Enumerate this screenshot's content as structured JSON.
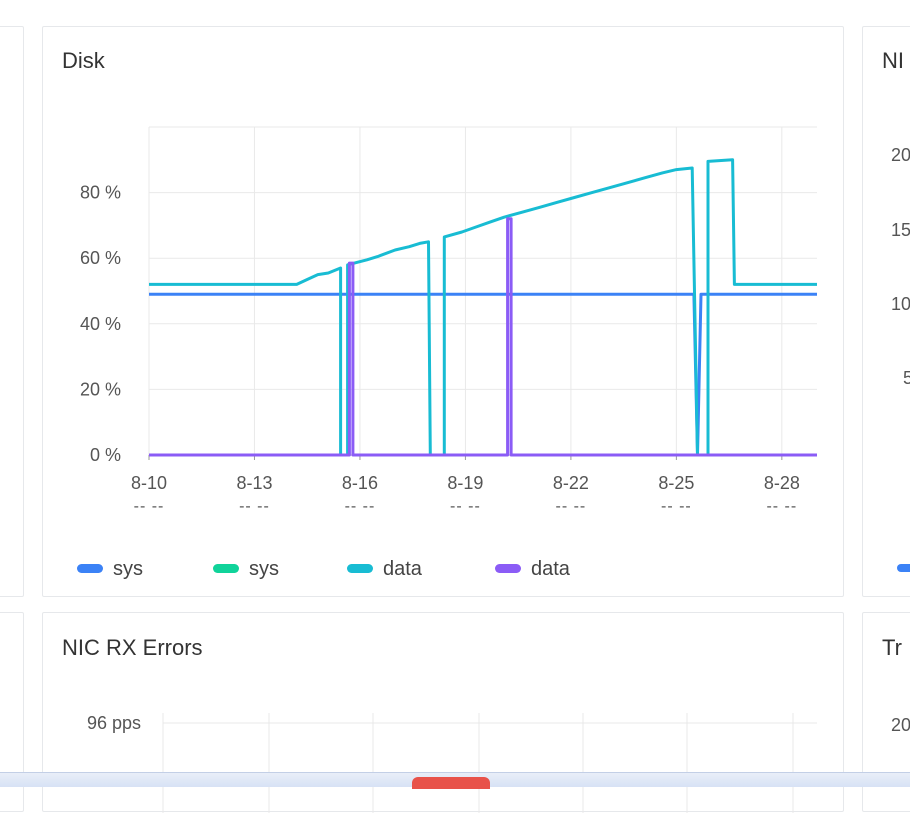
{
  "cards": {
    "disk_title": "Disk",
    "rx_errors_title": "NIC RX Errors",
    "right_top_title": "NI",
    "right_bottom_title": "Tr"
  },
  "chart_data": [
    {
      "type": "line",
      "title": "Disk",
      "xlabel": "",
      "ylabel": "",
      "x_ticks": [
        "8-10",
        "8-13",
        "8-16",
        "8-19",
        "8-22",
        "8-25",
        "8-28"
      ],
      "x_sub_ticks": [
        "-- --",
        "-- --",
        "-- --",
        "-- --",
        "-- --",
        "-- --",
        "-- --"
      ],
      "y_ticks": [
        "0 %",
        "20 %",
        "40 %",
        "60 %",
        "80 %"
      ],
      "xlim": [
        10,
        29
      ],
      "ylim": [
        0,
        100
      ],
      "grid": true,
      "legend_position": "bottom-left",
      "series": [
        {
          "name": "sys",
          "color": "#3b82f6",
          "points": [
            [
              10,
              49
            ],
            [
              18.8,
              49
            ],
            [
              18.8,
              49
            ],
            [
              25.5,
              49
            ],
            [
              25.6,
              0
            ],
            [
              25.7,
              49
            ],
            [
              29,
              49
            ]
          ]
        },
        {
          "name": "sys",
          "color": "#10d39a",
          "points": []
        },
        {
          "name": "data",
          "color": "#18bcd3",
          "points": [
            [
              10,
              52
            ],
            [
              14.2,
              52
            ],
            [
              14.5,
              53.5
            ],
            [
              14.8,
              55
            ],
            [
              15.1,
              55.5
            ],
            [
              15.45,
              57
            ],
            [
              15.45,
              0
            ],
            [
              15.65,
              0
            ],
            [
              15.65,
              58
            ],
            [
              16.2,
              59.5
            ],
            [
              16.5,
              60.5
            ],
            [
              17.0,
              62.5
            ],
            [
              17.4,
              63.5
            ],
            [
              17.7,
              64.5
            ],
            [
              17.95,
              65
            ],
            [
              18.0,
              0
            ],
            [
              18.4,
              0
            ],
            [
              18.4,
              66.5
            ],
            [
              18.9,
              68
            ],
            [
              19.3,
              69.5
            ],
            [
              19.7,
              71
            ],
            [
              20.1,
              72.5
            ],
            [
              20.6,
              74
            ],
            [
              21.1,
              75.5
            ],
            [
              21.6,
              77
            ],
            [
              22.1,
              78.5
            ],
            [
              22.6,
              80
            ],
            [
              23.1,
              81.5
            ],
            [
              23.6,
              83
            ],
            [
              24.1,
              84.5
            ],
            [
              24.6,
              86
            ],
            [
              25.0,
              87
            ],
            [
              25.45,
              87.5
            ],
            [
              25.6,
              0
            ],
            [
              25.9,
              0
            ],
            [
              25.9,
              89.5
            ],
            [
              26.6,
              90
            ],
            [
              26.65,
              52
            ],
            [
              29,
              52
            ]
          ]
        },
        {
          "name": "data",
          "color": "#8b5cf6",
          "points": [
            [
              10,
              0
            ],
            [
              15.7,
              0
            ],
            [
              15.7,
              58.5
            ],
            [
              15.8,
              58.5
            ],
            [
              15.8,
              0
            ],
            [
              20.2,
              0
            ],
            [
              20.2,
              72
            ],
            [
              20.3,
              72
            ],
            [
              20.3,
              0
            ],
            [
              29,
              0
            ]
          ]
        }
      ]
    },
    {
      "type": "line",
      "title": "NIC RX Errors",
      "y_ticks": [
        "96 pps"
      ],
      "series": []
    }
  ]
}
